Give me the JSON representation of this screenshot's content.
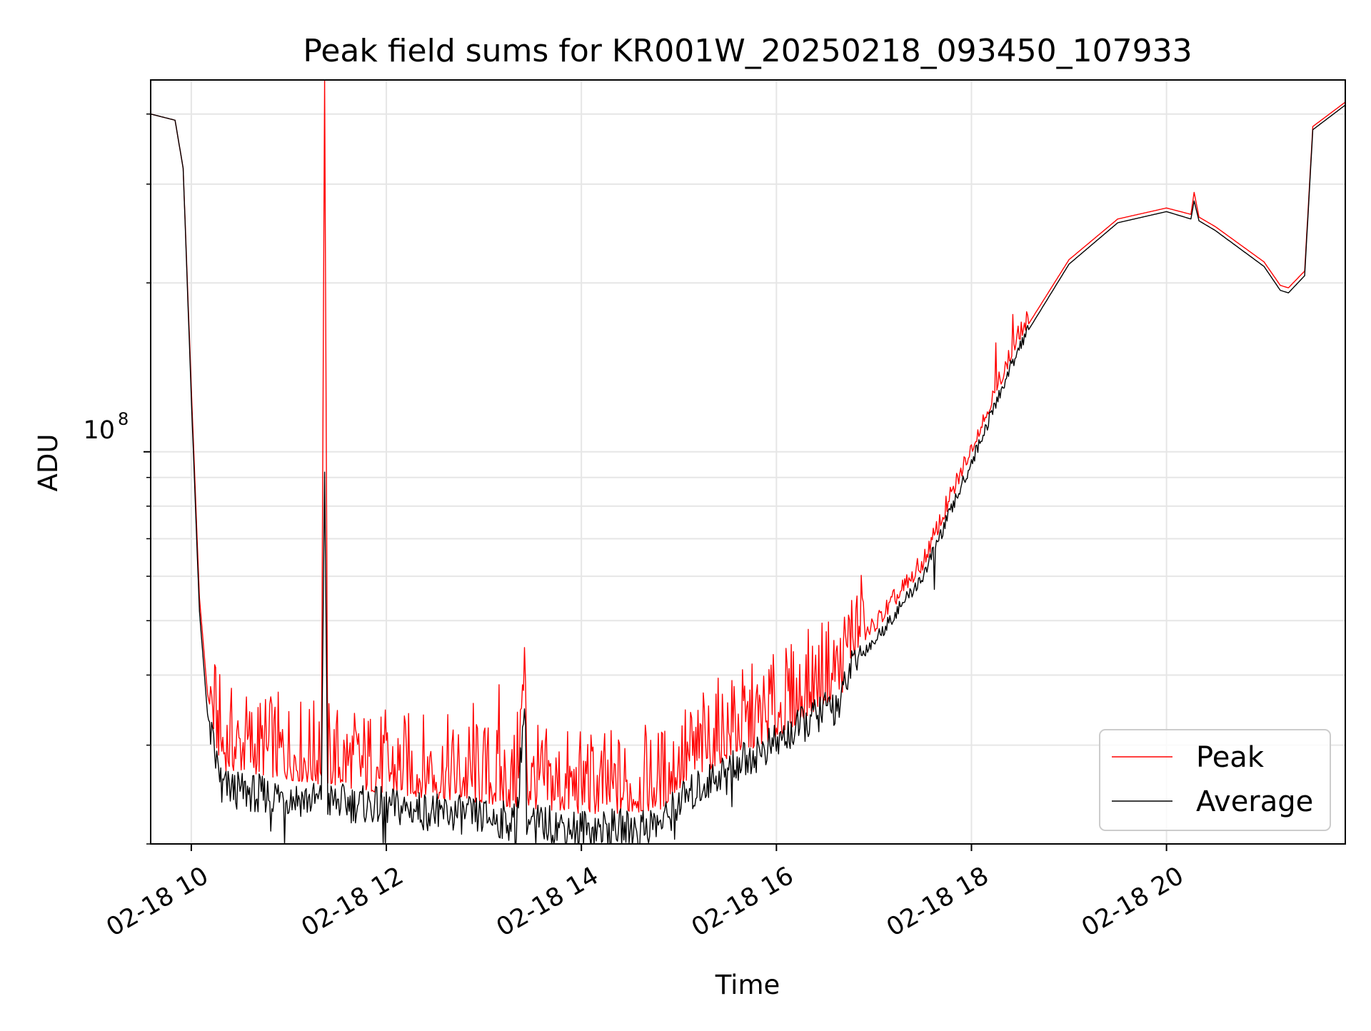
{
  "chart_data": {
    "type": "line",
    "title": "Peak field sums for KR001W_20250218_093450_107933",
    "xlabel": "Time",
    "ylabel": "ADU",
    "x_scale": "time",
    "y_scale": "log",
    "xlim": [
      "2025-02-18T09:35",
      "2025-02-18T21:50"
    ],
    "ylim": [
      20000000,
      460000000
    ],
    "x_ticks": [
      "2025-02-18T10:00",
      "2025-02-18T12:00",
      "2025-02-18T14:00",
      "2025-02-18T16:00",
      "2025-02-18T18:00",
      "2025-02-18T20:00"
    ],
    "x_tick_labels": [
      "02-18 10",
      "02-18 12",
      "02-18 14",
      "02-18 16",
      "02-18 18",
      "02-18 20"
    ],
    "y_major_ticks": [
      100000000
    ],
    "y_major_tick_labels": [
      "10",
      "8"
    ],
    "y_minor_ticks": [
      20000000,
      30000000,
      40000000,
      50000000,
      60000000,
      70000000,
      80000000,
      90000000,
      200000000,
      300000000,
      400000000
    ],
    "grid": true,
    "legend_position": "lower-right",
    "series": [
      {
        "name": "Peak",
        "color": "#ff0000",
        "x": [
          "2025-02-18T09:35",
          "2025-02-18T09:50",
          "2025-02-18T09:55",
          "2025-02-18T10:00",
          "2025-02-18T10:05",
          "2025-02-18T10:10",
          "2025-02-18T10:15",
          "2025-02-18T10:20",
          "2025-02-18T10:30",
          "2025-02-18T11:00",
          "2025-02-18T11:20",
          "2025-02-18T11:22",
          "2025-02-18T11:24",
          "2025-02-18T12:00",
          "2025-02-18T12:30",
          "2025-02-18T13:00",
          "2025-02-18T13:20",
          "2025-02-18T13:25",
          "2025-02-18T13:27",
          "2025-02-18T13:30",
          "2025-02-18T14:00",
          "2025-02-18T14:30",
          "2025-02-18T14:50",
          "2025-02-18T15:00",
          "2025-02-18T15:30",
          "2025-02-18T16:00",
          "2025-02-18T16:30",
          "2025-02-18T16:40",
          "2025-02-18T16:45",
          "2025-02-18T17:00",
          "2025-02-18T17:30",
          "2025-02-18T18:00",
          "2025-02-18T18:30",
          "2025-02-18T19:00",
          "2025-02-18T19:30",
          "2025-02-18T20:00",
          "2025-02-18T20:15",
          "2025-02-18T20:17",
          "2025-02-18T20:20",
          "2025-02-18T20:30",
          "2025-02-18T21:00",
          "2025-02-18T21:10",
          "2025-02-18T21:15",
          "2025-02-18T21:25",
          "2025-02-18T21:30",
          "2025-02-18T21:50"
        ],
        "y": [
          400000000,
          390000000,
          320000000,
          130000000,
          55000000,
          37000000,
          31000000,
          28000000,
          28000000,
          27000000,
          26500000,
          460000000,
          26500000,
          25500000,
          25000000,
          24500000,
          24000000,
          38000000,
          24000000,
          24000000,
          23500000,
          23500000,
          24000000,
          26000000,
          29500000,
          32000000,
          37000000,
          38000000,
          44000000,
          48000000,
          62000000,
          100000000,
          160000000,
          220000000,
          260000000,
          272000000,
          265000000,
          290000000,
          262000000,
          252000000,
          218000000,
          198000000,
          196000000,
          210000000,
          380000000,
          420000000
        ]
      },
      {
        "name": "Average",
        "color": "#000000",
        "x": [
          "2025-02-18T09:35",
          "2025-02-18T09:50",
          "2025-02-18T09:55",
          "2025-02-18T10:00",
          "2025-02-18T10:05",
          "2025-02-18T10:10",
          "2025-02-18T10:15",
          "2025-02-18T10:20",
          "2025-02-18T10:30",
          "2025-02-18T11:00",
          "2025-02-18T11:20",
          "2025-02-18T11:22",
          "2025-02-18T11:24",
          "2025-02-18T12:00",
          "2025-02-18T12:30",
          "2025-02-18T13:00",
          "2025-02-18T13:20",
          "2025-02-18T13:25",
          "2025-02-18T13:27",
          "2025-02-18T13:30",
          "2025-02-18T14:00",
          "2025-02-18T14:30",
          "2025-02-18T14:50",
          "2025-02-18T15:00",
          "2025-02-18T15:30",
          "2025-02-18T16:00",
          "2025-02-18T16:30",
          "2025-02-18T16:40",
          "2025-02-18T16:45",
          "2025-02-18T17:00",
          "2025-02-18T17:30",
          "2025-02-18T18:00",
          "2025-02-18T18:30",
          "2025-02-18T19:00",
          "2025-02-18T19:30",
          "2025-02-18T20:00",
          "2025-02-18T20:15",
          "2025-02-18T20:17",
          "2025-02-18T20:20",
          "2025-02-18T20:30",
          "2025-02-18T21:00",
          "2025-02-18T21:10",
          "2025-02-18T21:15",
          "2025-02-18T21:25",
          "2025-02-18T21:30",
          "2025-02-18T21:50"
        ],
        "y": [
          400000000,
          390000000,
          320000000,
          125000000,
          52000000,
          34000000,
          28500000,
          25500000,
          25000000,
          24500000,
          24000000,
          92000000,
          24000000,
          23500000,
          23000000,
          22500000,
          22000000,
          36000000,
          22000000,
          22000000,
          21500000,
          21500000,
          22000000,
          24000000,
          27500000,
          30500000,
          35000000,
          36000000,
          42000000,
          46000000,
          60000000,
          96000000,
          156000000,
          216000000,
          256000000,
          268000000,
          260000000,
          280000000,
          258000000,
          248000000,
          214000000,
          194000000,
          192000000,
          206000000,
          375000000,
          415000000
        ]
      }
    ]
  }
}
